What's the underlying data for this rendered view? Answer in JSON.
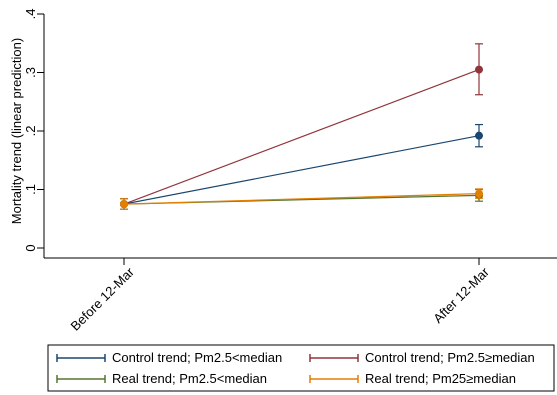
{
  "chart_data": {
    "type": "line",
    "title": "",
    "xlabel": "",
    "ylabel": "Mortality trend (linear prediction)",
    "categories": [
      "Before 12-Mar",
      "After 12-Mar"
    ],
    "ylim": [
      0,
      0.4
    ],
    "yticks": [
      0,
      0.1,
      0.2,
      0.3,
      0.4
    ],
    "ytick_labels": [
      "0",
      ".1",
      ".2",
      ".3",
      ".4"
    ],
    "grid": false,
    "legend_position": "bottom",
    "series": [
      {
        "name": "Control trend; Pm2.5<median",
        "values": [
          0.075,
          0.192
        ],
        "ci_low": [
          0.066,
          0.173
        ],
        "ci_high": [
          0.084,
          0.211
        ],
        "color": "#1a476f"
      },
      {
        "name": "Control trend; Pm2.5≥median",
        "values": [
          0.075,
          0.305
        ],
        "ci_low": [
          0.066,
          0.262
        ],
        "ci_high": [
          0.084,
          0.349
        ],
        "color": "#90353b"
      },
      {
        "name": "Real trend; Pm2.5<median",
        "values": [
          0.075,
          0.09
        ],
        "ci_low": [
          0.066,
          0.08
        ],
        "ci_high": [
          0.084,
          0.1
        ],
        "color": "#55752f"
      },
      {
        "name": "Real trend; Pm25≥median",
        "values": [
          0.075,
          0.093
        ],
        "ci_low": [
          0.066,
          0.085
        ],
        "ci_high": [
          0.084,
          0.101
        ],
        "color": "#e37e00"
      }
    ]
  }
}
